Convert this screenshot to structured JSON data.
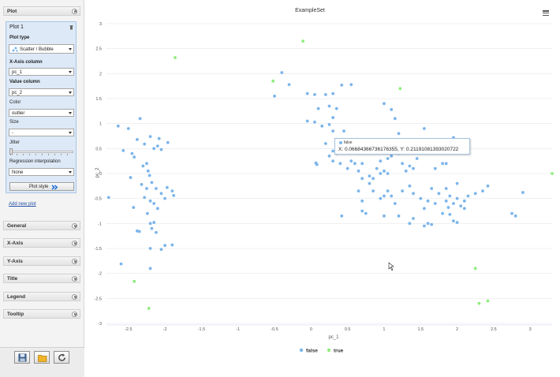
{
  "sidebar": {
    "plot_section": {
      "label": "Plot"
    },
    "plot_panel": {
      "title": "Plot 1",
      "plot_type": {
        "label": "Plot type",
        "value": "Scatter / Bubble"
      },
      "x_axis": {
        "label": "X-Axis column",
        "value": "pc_1"
      },
      "value_col": {
        "label": "Value column",
        "value": "pc_2"
      },
      "color": {
        "label": "Color",
        "value": "outlier"
      },
      "size": {
        "label": "Size",
        "value": "-"
      },
      "jitter": {
        "label": "Jitter"
      },
      "regression": {
        "label": "Regression interpolation",
        "value": "None"
      },
      "plot_style_button": "Plot style"
    },
    "add_new_plot": "Add new plot",
    "sections": [
      {
        "label": "General"
      },
      {
        "label": "X-Axis"
      },
      {
        "label": "Y-Axis"
      },
      {
        "label": "Title"
      },
      {
        "label": "Legend"
      },
      {
        "label": "Tooltip"
      }
    ],
    "toolbar": {
      "save": "save-icon",
      "open": "folder-icon",
      "refresh": "refresh-icon"
    }
  },
  "colors": {
    "false": "#7cb5ec",
    "true": "#90ed7d",
    "accent": "#2250a8"
  },
  "tooltip": {
    "series": "false",
    "text": "X: 0.06684366736176355, Y: 0.21191081393020722"
  },
  "chart_data": {
    "type": "scatter",
    "title": "ExampleSet",
    "xlabel": "pc_1",
    "ylabel": "pc_2",
    "xlim": [
      -2.8,
      3.3
    ],
    "ylim": [
      -3,
      3
    ],
    "xticks": [
      "-2.5",
      "-2",
      "-1.5",
      "-1",
      "-0.5",
      "0",
      "0.5",
      "1",
      "1.5",
      "2",
      "2.5",
      "3"
    ],
    "yticks": [
      "3",
      "2.5",
      "2",
      "1.5",
      "1",
      "0.5",
      "0",
      "-0.5",
      "-1",
      "-1.5",
      "-2",
      "-2.5",
      "-3"
    ],
    "legend_position": "bottom-center",
    "series": [
      {
        "name": "false",
        "color": "#7cb5ec",
        "points": [
          [
            -2.77,
            -0.48
          ],
          [
            -2.64,
            0.95
          ],
          [
            -2.57,
            0.46
          ],
          [
            -2.5,
            0.9
          ],
          [
            -2.45,
            0.4
          ],
          [
            -2.42,
            0.33
          ],
          [
            -2.38,
            0.68
          ],
          [
            -2.47,
            -0.08
          ],
          [
            -2.43,
            -0.68
          ],
          [
            -2.34,
            1.1
          ],
          [
            -2.28,
            0.59
          ],
          [
            -2.25,
            0.2
          ],
          [
            -2.2,
            0.74
          ],
          [
            -2.15,
            0.5
          ],
          [
            -2.1,
            0.55
          ],
          [
            -2.08,
            0.7
          ],
          [
            -2.05,
            0.48
          ],
          [
            -2.3,
            0.15
          ],
          [
            -2.23,
            0.05
          ],
          [
            -2.21,
            -0.04
          ],
          [
            -2.32,
            -0.22
          ],
          [
            -2.25,
            -0.3
          ],
          [
            -2.18,
            -0.18
          ],
          [
            -2.12,
            -0.3
          ],
          [
            -2.05,
            -0.4
          ],
          [
            -2.0,
            -0.5
          ],
          [
            -1.97,
            -0.28
          ],
          [
            -1.9,
            -0.35
          ],
          [
            -2.28,
            -0.48
          ],
          [
            -2.2,
            -0.55
          ],
          [
            -2.15,
            -0.6
          ],
          [
            -2.1,
            -0.7
          ],
          [
            -2.24,
            -0.8
          ],
          [
            -2.15,
            -0.98
          ],
          [
            -2.2,
            -1.0
          ],
          [
            -2.18,
            -1.1
          ],
          [
            -2.12,
            -1.18
          ],
          [
            -2.38,
            -1.15
          ],
          [
            -2.35,
            -1.16
          ],
          [
            -1.96,
            0.62
          ],
          [
            -1.88,
            -0.44
          ],
          [
            -2.2,
            -1.5
          ],
          [
            -2.05,
            -1.52
          ],
          [
            -2.6,
            -1.81
          ],
          [
            -2.2,
            -1.9
          ],
          [
            -2.0,
            -1.44
          ],
          [
            -1.9,
            -1.43
          ],
          [
            -0.5,
            1.55
          ],
          [
            -0.4,
            2.02
          ],
          [
            -0.3,
            1.78
          ],
          [
            -0.05,
            1.6
          ],
          [
            0.05,
            1.58
          ],
          [
            0.2,
            1.58
          ],
          [
            0.3,
            1.6
          ],
          [
            0.42,
            1.77
          ],
          [
            0.55,
            1.78
          ],
          [
            0.1,
            1.3
          ],
          [
            0.25,
            1.35
          ],
          [
            0.35,
            1.3
          ],
          [
            0.3,
            1.12
          ],
          [
            0.25,
            0.98
          ],
          [
            0.15,
            0.95
          ],
          [
            0.05,
            1.03
          ],
          [
            -0.05,
            1.05
          ],
          [
            0.3,
            0.85
          ],
          [
            0.45,
            0.85
          ],
          [
            0.2,
            0.6
          ],
          [
            0.3,
            0.45
          ],
          [
            0.25,
            0.35
          ],
          [
            0.35,
            0.4
          ],
          [
            0.4,
            0.5
          ],
          [
            0.5,
            0.6
          ],
          [
            0.3,
            0.25
          ],
          [
            0.4,
            0.2
          ],
          [
            0.5,
            0.1
          ],
          [
            0.55,
            0.25
          ],
          [
            0.6,
            0.2
          ],
          [
            0.7,
            0.2
          ],
          [
            0.06684366736176355,
            0.21191081393020722
          ],
          [
            0.08,
            0.18
          ],
          [
            0.65,
            0.05
          ],
          [
            0.7,
            -0.1
          ],
          [
            0.8,
            -0.05
          ],
          [
            0.9,
            0.1
          ],
          [
            0.95,
            0.25
          ],
          [
            1.0,
            0.05
          ],
          [
            1.0,
            1.4
          ],
          [
            1.1,
            1.28
          ],
          [
            1.15,
            1.1
          ],
          [
            1.2,
            0.8
          ],
          [
            1.25,
            0.6
          ],
          [
            1.15,
            0.55
          ],
          [
            1.2,
            0.4
          ],
          [
            1.1,
            0.35
          ],
          [
            1.05,
            0.3
          ],
          [
            1.25,
            0.45
          ],
          [
            1.35,
            0.5
          ],
          [
            1.45,
            0.3
          ],
          [
            1.5,
            0.42
          ],
          [
            1.55,
            0.9
          ],
          [
            1.6,
            0.45
          ],
          [
            1.7,
            0.1
          ],
          [
            1.8,
            0.2
          ],
          [
            1.85,
            0.2
          ],
          [
            1.95,
            0.72
          ],
          [
            1.35,
            0.15
          ],
          [
            1.4,
            0.1
          ],
          [
            1.25,
            0.2
          ],
          [
            1.3,
            0.05
          ],
          [
            1.05,
            0.0
          ],
          [
            0.95,
            0.0
          ],
          [
            0.85,
            -0.1
          ],
          [
            0.8,
            -0.2
          ],
          [
            0.65,
            -0.35
          ],
          [
            0.7,
            -0.55
          ],
          [
            0.7,
            -0.75
          ],
          [
            0.85,
            -0.35
          ],
          [
            0.95,
            -0.5
          ],
          [
            1.05,
            -0.35
          ],
          [
            1.1,
            -0.45
          ],
          [
            1.15,
            -0.6
          ],
          [
            1.25,
            -0.35
          ],
          [
            1.35,
            -0.25
          ],
          [
            1.4,
            -0.4
          ],
          [
            1.5,
            -0.5
          ],
          [
            1.55,
            -0.7
          ],
          [
            1.6,
            -0.55
          ],
          [
            1.65,
            -0.3
          ],
          [
            1.7,
            -0.6
          ],
          [
            1.75,
            -0.4
          ],
          [
            1.8,
            -0.8
          ],
          [
            1.85,
            -0.3
          ],
          [
            1.9,
            -0.45
          ],
          [
            1.95,
            -0.6
          ],
          [
            2.0,
            -0.5
          ],
          [
            2.05,
            -0.65
          ],
          [
            2.1,
            -0.55
          ],
          [
            2.15,
            -0.45
          ],
          [
            1.85,
            -0.55
          ],
          [
            1.88,
            -0.68
          ],
          [
            1.9,
            -0.82
          ],
          [
            1.95,
            -0.95
          ],
          [
            2.0,
            -0.98
          ],
          [
            2.1,
            -0.7
          ],
          [
            2.0,
            -0.2
          ],
          [
            2.25,
            -0.4
          ],
          [
            2.35,
            -0.35
          ],
          [
            2.42,
            -0.25
          ],
          [
            1.65,
            -1.02
          ],
          [
            1.55,
            -1.05
          ],
          [
            1.4,
            -0.9
          ],
          [
            1.35,
            -1.0
          ],
          [
            1.2,
            -0.85
          ],
          [
            1.0,
            -0.85
          ],
          [
            0.75,
            -0.8
          ],
          [
            0.42,
            -0.85
          ],
          [
            1.0,
            -0.45
          ],
          [
            2.75,
            -0.8
          ],
          [
            2.8,
            -0.85
          ],
          [
            2.9,
            -0.38
          ],
          [
            1.6,
            -1.0
          ]
        ]
      },
      {
        "name": "true",
        "color": "#90ed7d",
        "points": [
          [
            -1.86,
            2.32
          ],
          [
            -0.11,
            2.65
          ],
          [
            -0.52,
            1.85
          ],
          [
            1.22,
            1.7
          ],
          [
            3.3,
            0.0
          ],
          [
            2.25,
            -1.9
          ],
          [
            -2.42,
            -2.16
          ],
          [
            -2.22,
            -2.7
          ],
          [
            2.3,
            -2.6
          ],
          [
            2.42,
            -2.55
          ]
        ]
      }
    ]
  }
}
